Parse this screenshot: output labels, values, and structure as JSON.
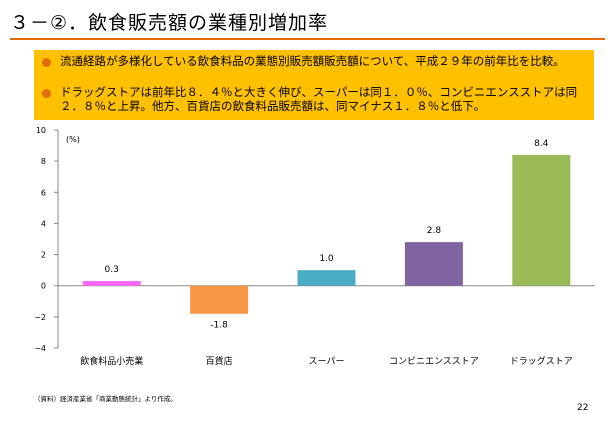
{
  "slide": {
    "title": "３－②．飲食販売額の業種別増加率",
    "bullets": [
      "流通経路が多様化している飲食料品の業態別販売額販売額について、平成２９年の前年比を比較。",
      "ドラッグストアは前年比８．４％と大きく伸び、スーパーは同１．０％、コンビニエンスストアは同２．８％と上昇。他方、百貨店の飲食料品販売額は、同マイナス１．８％と低下。"
    ],
    "source": "（資料）経済産業省「商業動態統計」より作成。",
    "page_number": "22",
    "accent_color": "#e36c0a",
    "box_color": "#ffc000"
  },
  "chart_data": {
    "type": "bar",
    "unit_label": "(%)",
    "categories": [
      "飲食料品小売業",
      "百貨店",
      "スーパー",
      "コンビニエンスストア",
      "ドラッグストア"
    ],
    "values": [
      0.3,
      -1.8,
      1.0,
      2.8,
      8.4
    ],
    "value_labels": [
      "0.3",
      "-1.8",
      "1.0",
      "2.8",
      "8.4"
    ],
    "colors": [
      "#ff66ff",
      "#f79646",
      "#4bacc6",
      "#8064a2",
      "#9bbb59"
    ],
    "ylim": [
      -4,
      10
    ],
    "yticks": [
      -4,
      -2,
      0,
      2,
      4,
      6,
      8,
      10
    ],
    "ytick_labels": [
      "−4",
      "−2",
      "0",
      "2",
      "4",
      "6",
      "8",
      "10"
    ],
    "grid": false,
    "legend": "none"
  }
}
